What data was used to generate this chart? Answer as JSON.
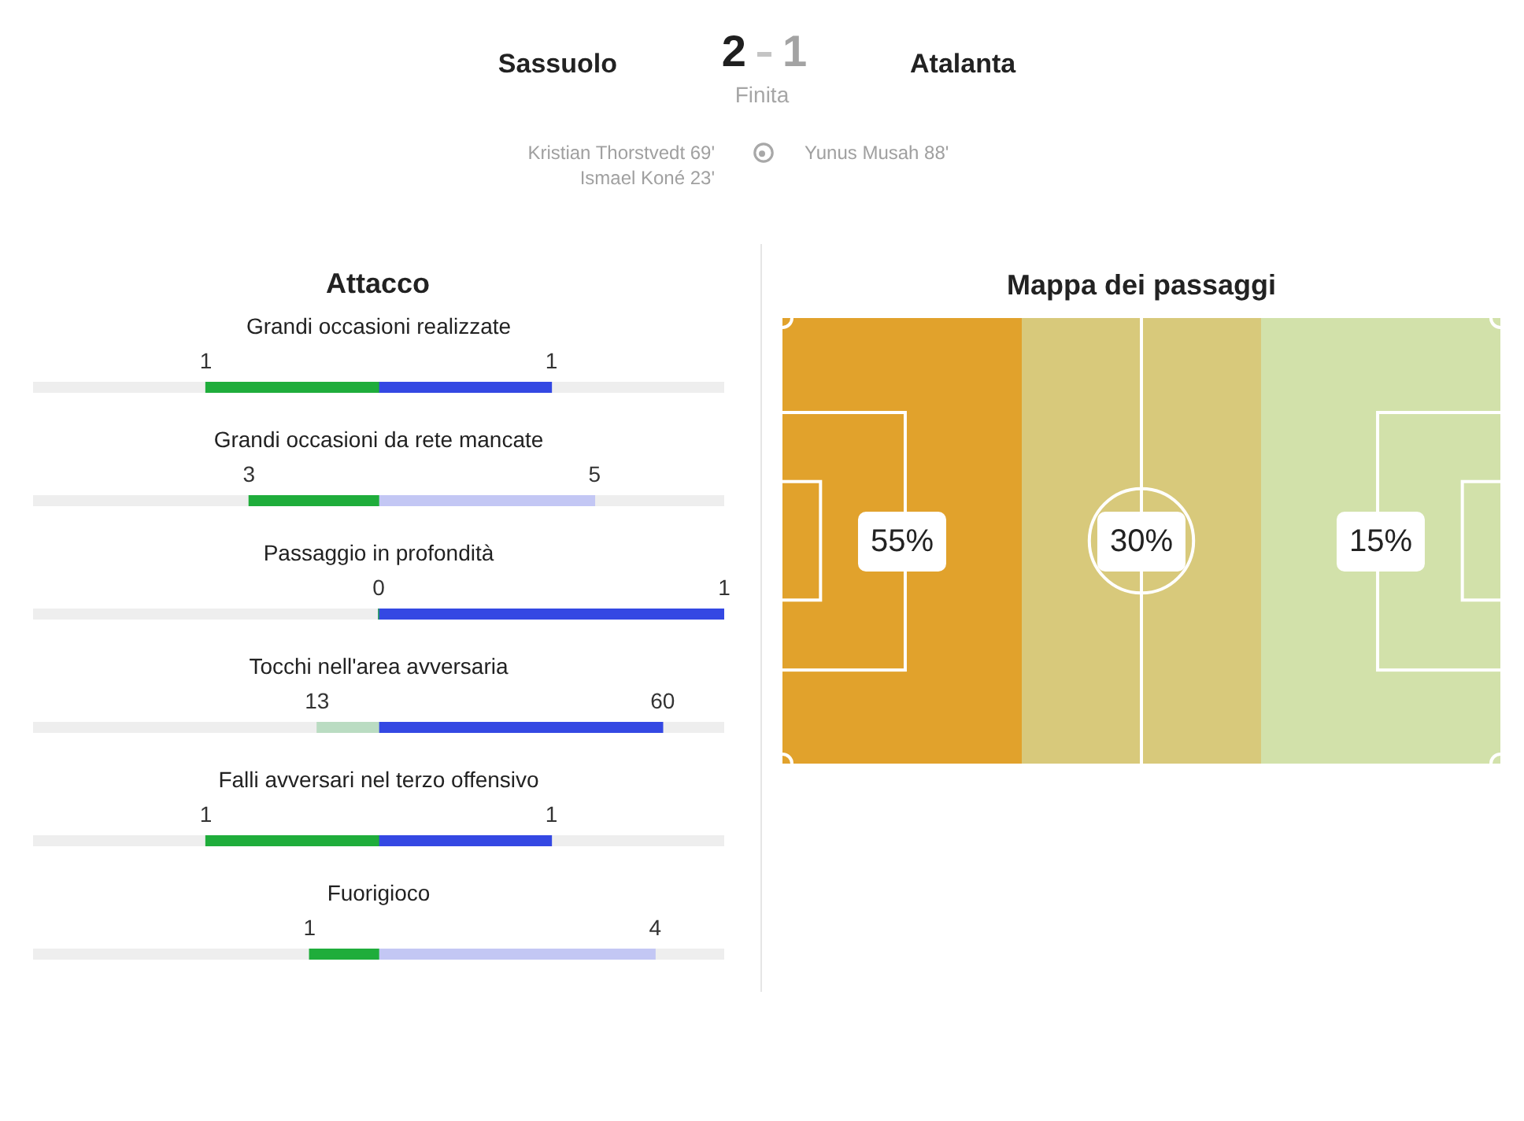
{
  "chart_data": [
    {
      "type": "other",
      "categories": [
        "Sassuolo",
        "Atalanta"
      ],
      "values": [
        2,
        1
      ],
      "colors": [
        "#1f1f1f",
        "#a3a3a3"
      ],
      "data_labels": true,
      "subtitle": "Finita",
      "annotations": [
        "Kristian Thorstvedt 69'",
        "Ismael Koné 23'",
        "Yunus Musah 88'"
      ]
    },
    {
      "type": "bar",
      "orientation": "horizontal",
      "stacked": true,
      "title": "Attacco",
      "categories": [
        "Grandi occasioni realizzate"
      ],
      "xlim": [
        -2,
        2
      ],
      "xticks": [
        {
          "value": -1,
          "label": "1"
        },
        1
      ],
      "bands": [
        {
          "axis": "x",
          "from": -2,
          "to": 2,
          "color": "#eeeeee"
        }
      ],
      "series": [
        {
          "color": "#1fad3b",
          "values": [
            -1
          ]
        },
        {
          "color": "#3448e3",
          "values": [
            1
          ]
        }
      ]
    },
    {
      "type": "bar",
      "orientation": "horizontal",
      "stacked": true,
      "categories": [
        "Grandi occasioni da rete mancate"
      ],
      "xlim": [
        -8,
        8
      ],
      "xticks": [
        {
          "value": -3,
          "label": "3"
        },
        5
      ],
      "bands": [
        {
          "axis": "x",
          "from": -8,
          "to": 8,
          "color": "#eeeeee"
        }
      ],
      "series": [
        {
          "color": "#1fad3b",
          "values": [
            -3
          ]
        },
        {
          "color": "#c3c7f4",
          "values": [
            5
          ]
        }
      ]
    },
    {
      "type": "bar",
      "orientation": "horizontal",
      "stacked": true,
      "categories": [
        "Passaggio in profondità"
      ],
      "xlim": [
        -1,
        1
      ],
      "xticks": [
        0,
        1
      ],
      "bands": [
        {
          "axis": "x",
          "from": -1,
          "to": 1,
          "color": "#eeeeee"
        }
      ],
      "series": [
        {
          "color": "#1fad3b",
          "values": [
            0
          ]
        },
        {
          "color": "#3448e3",
          "values": [
            1
          ]
        }
      ]
    },
    {
      "type": "bar",
      "orientation": "horizontal",
      "stacked": true,
      "categories": [
        "Tocchi nell'area avversaria"
      ],
      "xlim": [
        -73,
        73
      ],
      "xticks": [
        {
          "value": -13,
          "label": "13"
        },
        60
      ],
      "bands": [
        {
          "axis": "x",
          "from": -73,
          "to": 73,
          "color": "#eeeeee"
        }
      ],
      "series": [
        {
          "color": "#badcc2",
          "values": [
            -13
          ]
        },
        {
          "color": "#3448e3",
          "values": [
            60
          ]
        }
      ]
    },
    {
      "type": "bar",
      "orientation": "horizontal",
      "stacked": true,
      "categories": [
        "Falli avversari nel terzo offensivo"
      ],
      "xlim": [
        -2,
        2
      ],
      "xticks": [
        {
          "value": -1,
          "label": "1"
        },
        1
      ],
      "bands": [
        {
          "axis": "x",
          "from": -2,
          "to": 2,
          "color": "#eeeeee"
        }
      ],
      "series": [
        {
          "color": "#1fad3b",
          "values": [
            -1
          ]
        },
        {
          "color": "#3448e3",
          "values": [
            1
          ]
        }
      ]
    },
    {
      "type": "bar",
      "orientation": "horizontal",
      "stacked": true,
      "categories": [
        "Fuorigioco"
      ],
      "xlim": [
        -5,
        5
      ],
      "xticks": [
        {
          "value": -1,
          "label": "1"
        },
        4
      ],
      "bands": [
        {
          "axis": "x",
          "from": -5,
          "to": 5,
          "color": "#eeeeee"
        }
      ],
      "series": [
        {
          "color": "#1fad3b",
          "values": [
            -1
          ]
        },
        {
          "color": "#c3c7f4",
          "values": [
            4
          ]
        }
      ]
    },
    {
      "type": "other",
      "title": "Mappa dei passaggi",
      "values": [
        55,
        30,
        15
      ],
      "value_labels": [
        "55%",
        "30%",
        "15%"
      ]
    }
  ]
}
